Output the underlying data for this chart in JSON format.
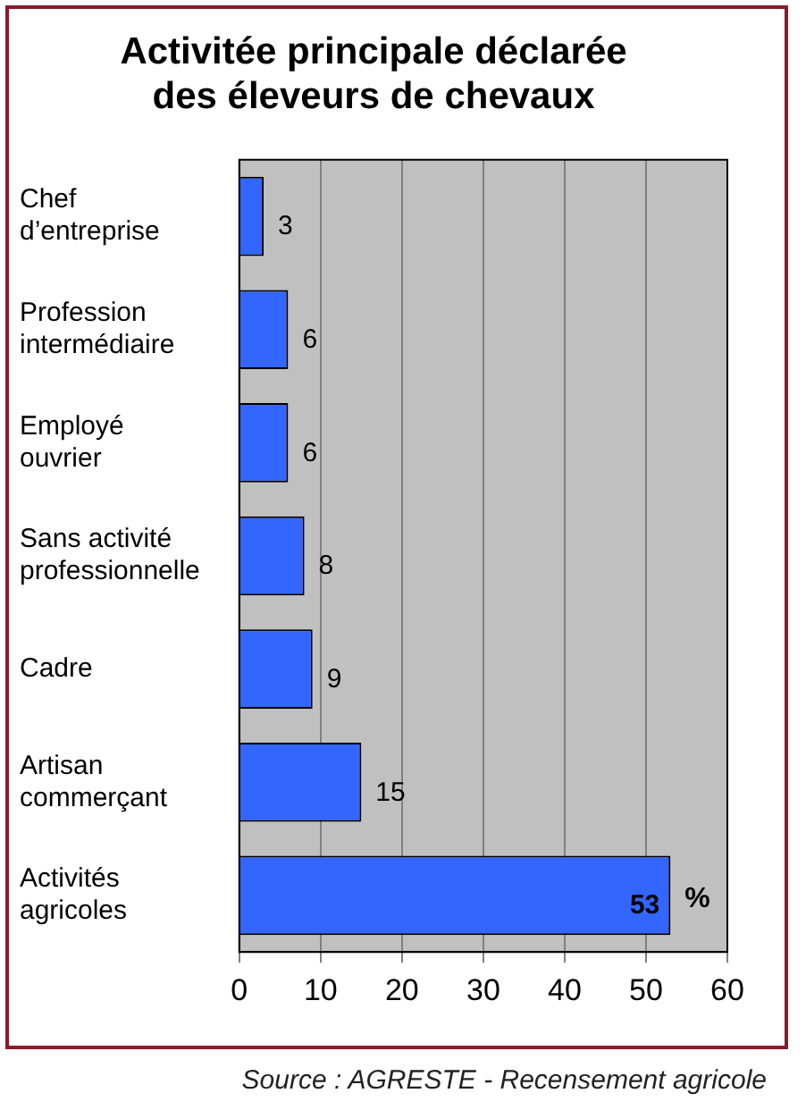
{
  "chart_data": {
    "type": "bar",
    "orientation": "horizontal",
    "title": "Activitée principale déclarée\ndes éleveurs de chevaux",
    "categories": [
      "Chef\nd’entreprise",
      "Profession\nintermédiaire",
      "Employé\nouvrier",
      "Sans activité\nprofessionnelle",
      "Cadre",
      "Artisan\ncommerçant",
      "Activités\nagricoles"
    ],
    "values": [
      3,
      6,
      6,
      8,
      9,
      15,
      53
    ],
    "color": "#3366ff",
    "xlim": [
      0,
      60
    ],
    "xticks": [
      0,
      10,
      20,
      30,
      40,
      50,
      60
    ],
    "grid": "x",
    "legend": false,
    "data_labels": true,
    "annotations": [
      {
        "text": "%",
        "x": 53,
        "y": "Activités\nagricoles"
      },
      "Source : AGRESTE - Recensement agricole"
    ]
  }
}
